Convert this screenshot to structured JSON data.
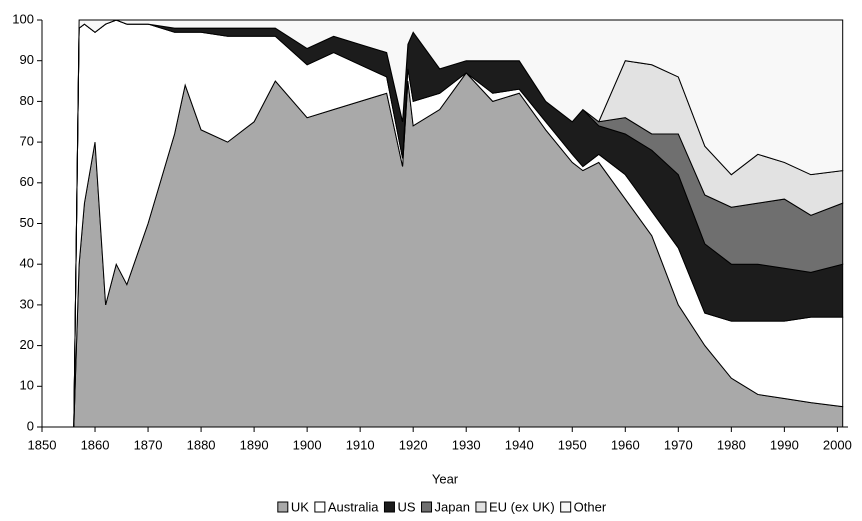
{
  "chart_data": {
    "type": "stacked-area",
    "x_label": "Year",
    "x": [
      1856,
      1857,
      1858,
      1860,
      1862,
      1864,
      1866,
      1870,
      1875,
      1877,
      1880,
      1885,
      1890,
      1894,
      1900,
      1905,
      1910,
      1915,
      1918,
      1919,
      1920,
      1925,
      1930,
      1935,
      1940,
      1945,
      1950,
      1952,
      1955,
      1960,
      1965,
      1970,
      1975,
      1980,
      1985,
      1990,
      1995,
      2001
    ],
    "series": [
      {
        "name": "UK",
        "color": "#a9a9a9",
        "values": [
          0,
          40,
          55,
          70,
          30,
          40,
          35,
          50,
          72,
          84,
          73,
          70,
          75,
          85,
          76,
          78,
          80,
          82,
          64,
          85,
          74,
          78,
          87,
          80,
          82,
          73,
          65,
          63,
          65,
          56,
          47,
          30,
          20,
          12,
          8,
          7,
          6,
          5
        ]
      },
      {
        "name": "Australia",
        "color": "#ffffff",
        "values": [
          0,
          58,
          44,
          27,
          69,
          60,
          64,
          49,
          25,
          13,
          24,
          26,
          21,
          11,
          13,
          14,
          9,
          4,
          2,
          3,
          6,
          4,
          0,
          2,
          1,
          2,
          2,
          1,
          2,
          6,
          6,
          14,
          8,
          14,
          18,
          19,
          21,
          22
        ]
      },
      {
        "name": "US",
        "color": "#1c1c1c",
        "values": [
          0,
          0,
          0,
          0,
          0,
          0,
          0,
          0,
          1,
          1,
          1,
          2,
          2,
          2,
          4,
          4,
          5,
          6,
          9,
          6,
          17,
          6,
          3,
          8,
          7,
          5,
          8,
          14,
          7,
          10,
          15,
          18,
          17,
          14,
          14,
          13,
          11,
          13
        ]
      },
      {
        "name": "Japan",
        "color": "#6f6f6f",
        "values": [
          0,
          0,
          0,
          0,
          0,
          0,
          0,
          0,
          0,
          0,
          0,
          0,
          0,
          0,
          0,
          0,
          0,
          0,
          0,
          0,
          0,
          0,
          0,
          0,
          0,
          0,
          0,
          0,
          1,
          4,
          4,
          10,
          12,
          14,
          15,
          17,
          14,
          15
        ]
      },
      {
        "name": "EU (ex UK)",
        "color": "#e2e2e2",
        "values": [
          0,
          0,
          0,
          0,
          0,
          0,
          0,
          0,
          0,
          0,
          0,
          0,
          0,
          0,
          0,
          0,
          0,
          0,
          0,
          0,
          0,
          0,
          0,
          0,
          0,
          0,
          0,
          0,
          0,
          14,
          17,
          14,
          12,
          8,
          12,
          9,
          10,
          8
        ]
      },
      {
        "name": "Other",
        "color": "#f8f8f8",
        "values": [
          0,
          2,
          1,
          3,
          1,
          0,
          1,
          1,
          2,
          2,
          2,
          2,
          2,
          2,
          7,
          4,
          6,
          8,
          25,
          6,
          3,
          12,
          10,
          10,
          10,
          20,
          25,
          22,
          25,
          10,
          11,
          14,
          31,
          38,
          33,
          35,
          38,
          37
        ]
      }
    ],
    "xlim": [
      1850,
      2002
    ],
    "xticks": [
      1850,
      1860,
      1870,
      1880,
      1890,
      1900,
      1910,
      1920,
      1930,
      1940,
      1950,
      1960,
      1970,
      1980,
      1990,
      2000
    ],
    "ylim": [
      0,
      100
    ],
    "yticks": [
      0,
      10,
      20,
      30,
      40,
      50,
      60,
      70,
      80,
      90,
      100
    ]
  }
}
